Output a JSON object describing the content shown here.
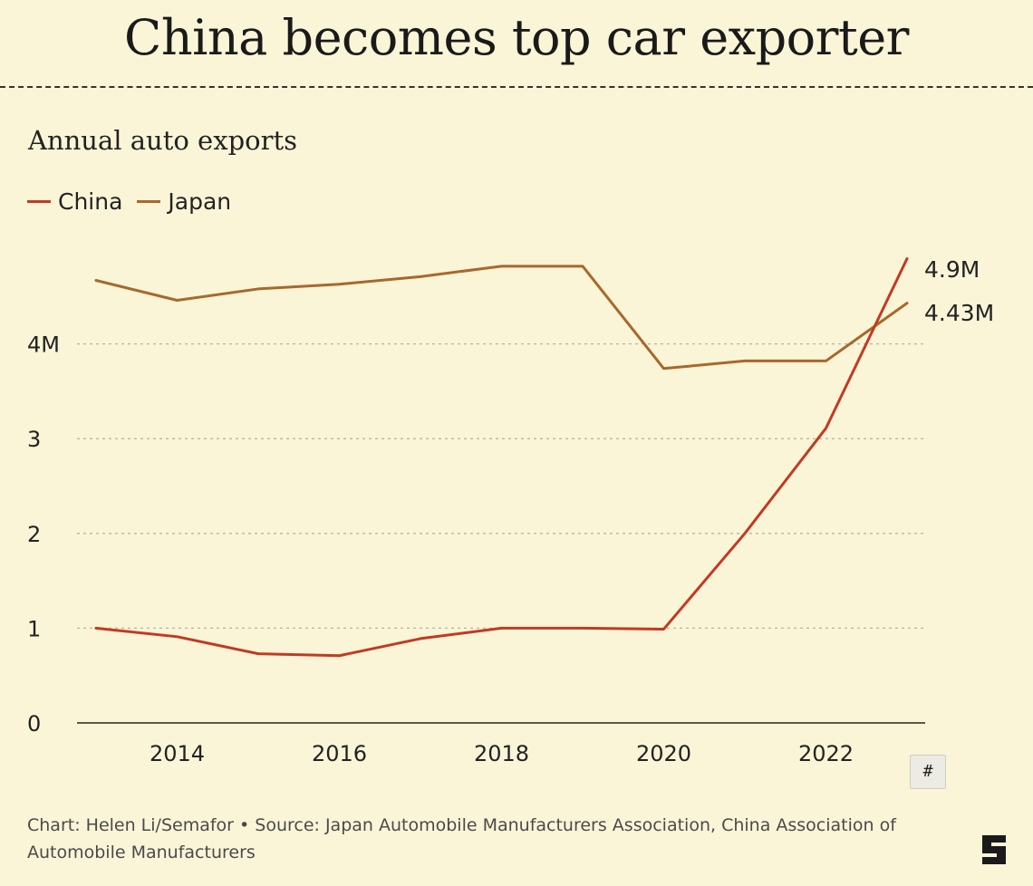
{
  "header": {
    "headline": "China becomes top car exporter"
  },
  "chart_data": {
    "type": "line",
    "title": "Annual auto exports",
    "xlabel": "",
    "ylabel": "",
    "x": [
      2013,
      2014,
      2015,
      2016,
      2017,
      2018,
      2019,
      2020,
      2021,
      2022,
      2023
    ],
    "xlim": [
      2013,
      2023
    ],
    "ylim": [
      0,
      5
    ],
    "x_ticks": [
      "2014",
      "2016",
      "2018",
      "2020",
      "2022"
    ],
    "x_tick_values": [
      2014,
      2016,
      2018,
      2020,
      2022
    ],
    "y_ticks": [
      "0",
      "1",
      "2",
      "3",
      "4M"
    ],
    "y_tick_values": [
      0,
      1,
      2,
      3,
      4
    ],
    "grid": "horizontal dotted",
    "legend_placement": "top-left",
    "series": [
      {
        "name": "China",
        "color": "#c23a22",
        "values": [
          1.0,
          0.91,
          0.73,
          0.71,
          0.89,
          1.0,
          1.0,
          0.99,
          2.0,
          3.11,
          4.9
        ],
        "end_label": "4.9M"
      },
      {
        "name": "Japan",
        "color": "#a8682c",
        "values": [
          4.67,
          4.46,
          4.58,
          4.63,
          4.71,
          4.82,
          4.82,
          3.74,
          3.82,
          3.82,
          4.43
        ],
        "end_label": "4.43M"
      }
    ]
  },
  "toolbar": {
    "hash_label": "#"
  },
  "footer": {
    "credit": "Chart: Helen Li/Semafor • Source: Japan Automobile Manufacturers Association, China Association of Automobile Manufacturers"
  },
  "colors": {
    "background": "#fbf5d8",
    "china": "#c23a22",
    "japan": "#a8682c",
    "grid": "#b9b4a0",
    "axis": "#222222"
  }
}
